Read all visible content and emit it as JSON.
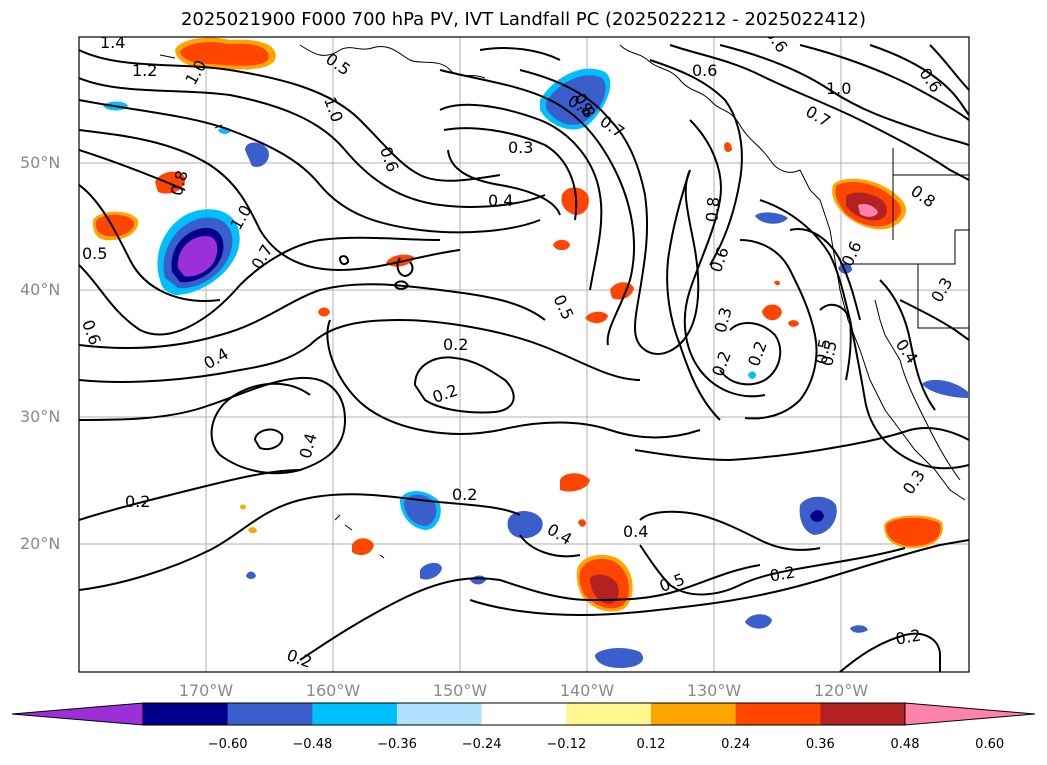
{
  "title": "2025021900 F000 700 hPa PV, IVT Landfall PC (2025022212 - 2025022412)",
  "lat_labels": [
    "50°N",
    "40°N",
    "30°N",
    "20°N"
  ],
  "lon_labels": [
    "170°W",
    "160°W",
    "150°W",
    "140°W",
    "130°W",
    "120°W"
  ],
  "colorbar": {
    "tick_labels": [
      "−0.60",
      "−0.48",
      "−0.36",
      "−0.24",
      "−0.12",
      "0.12",
      "0.24",
      "0.36",
      "0.48",
      "0.60"
    ],
    "colors": [
      "#9b30d9",
      "#00008b",
      "#3a5fcd",
      "#00bfff",
      "#b0e2ff",
      "#ffffff",
      "#fff68f",
      "#ffa500",
      "#ff4500",
      "#b22222",
      "#ff82ab"
    ]
  },
  "contour_labels": [
    "1.4",
    "1.2",
    "1.0",
    "0.5",
    "1.0",
    "0.6",
    "0.8",
    "0.7",
    "0.6",
    "1.0",
    "0.7",
    "0.6",
    "0.3",
    "0.4",
    "0.8",
    "0.8",
    "0.5",
    "1.0",
    "0.7",
    "0.4",
    "0.5",
    "0.8",
    "0.6",
    "0.6",
    "0.3",
    "0.5",
    "0.2",
    "0.2",
    "0.2",
    "0.4",
    "0.2",
    "0.2",
    "0.4",
    "0.4",
    "0.5",
    "0.2",
    "0.2",
    "0.6",
    "0.2",
    "0.3",
    "0.4",
    "0.3",
    "0.5",
    "0.2",
    "0.8",
    "0.6"
  ]
}
